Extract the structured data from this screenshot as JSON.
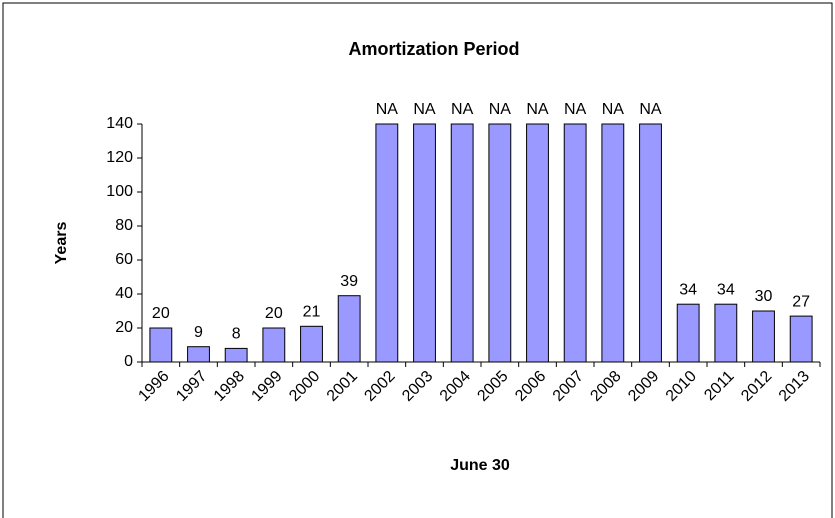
{
  "chart_data": {
    "type": "bar",
    "title": "Amortization Period",
    "x_label": "June 30",
    "y_label": "Years",
    "categories": [
      "1996",
      "1997",
      "1998",
      "1999",
      "2000",
      "2001",
      "2002",
      "2003",
      "2004",
      "2005",
      "2006",
      "2007",
      "2008",
      "2009",
      "2010",
      "2011",
      "2012",
      "2013"
    ],
    "values": [
      20,
      9,
      8,
      20,
      21,
      39,
      140,
      140,
      140,
      140,
      140,
      140,
      140,
      140,
      34,
      34,
      30,
      27
    ],
    "value_labels": [
      null,
      null,
      null,
      null,
      null,
      null,
      "NA",
      "NA",
      "NA",
      "NA",
      "NA",
      "NA",
      "NA",
      "NA",
      null,
      null,
      null,
      null
    ],
    "color": "#9999ff",
    "ylim": [
      0,
      140
    ],
    "yticks": [
      0,
      20,
      40,
      60,
      80,
      100,
      120,
      140
    ],
    "grid": false
  }
}
